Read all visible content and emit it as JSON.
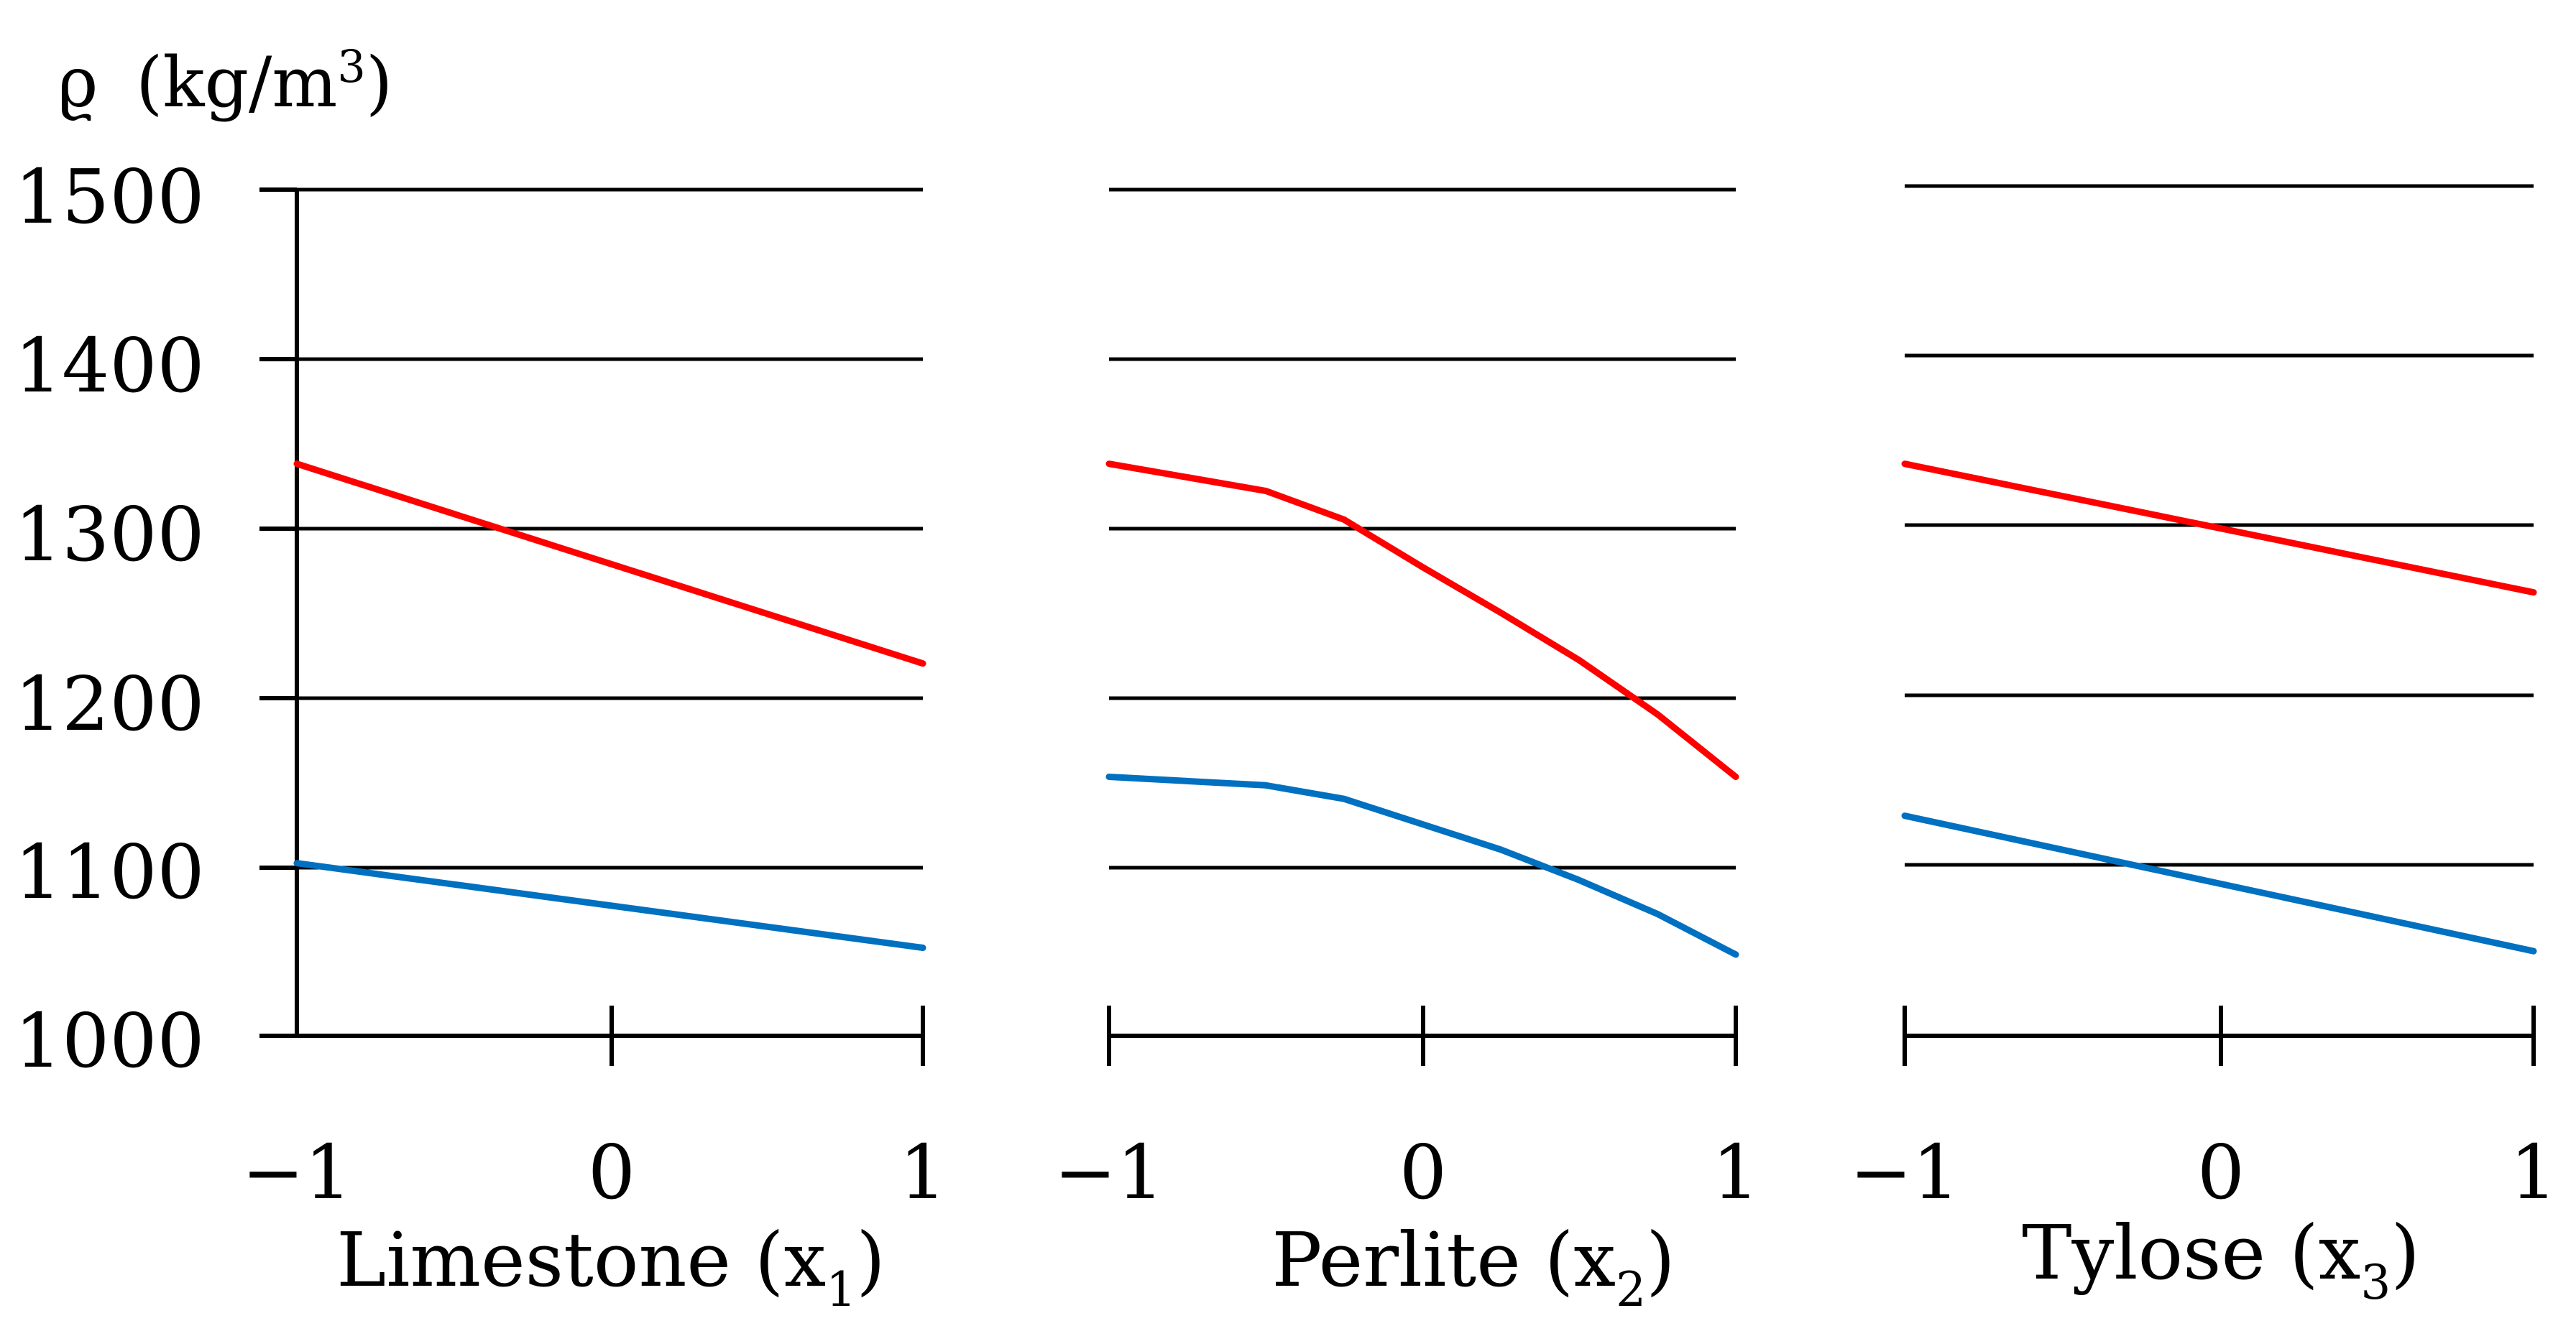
{
  "chart_data": {
    "type": "line",
    "ylabel": {
      "symbol": "ϱ",
      "unit_base": "(kg/m",
      "unit_sup": "3",
      "unit_close": ")"
    },
    "ylim": [
      1000,
      1500
    ],
    "yticks": [
      "1000",
      "1100",
      "1200",
      "1300",
      "1400",
      "1500"
    ],
    "xticks": [
      "−1",
      "0",
      "1"
    ],
    "colors": {
      "red": "#ff0000",
      "blue": "#0070c0"
    },
    "panels": [
      {
        "name": "limestone",
        "xlabel": {
          "text": "Limestone (x",
          "sub": "1",
          "close": ")"
        },
        "series": [
          {
            "name": "red",
            "color": "#ff0000",
            "x": [
              -1,
              1
            ],
            "y": [
              1338,
              1220
            ]
          },
          {
            "name": "blue",
            "color": "#0070c0",
            "x": [
              -1,
              1
            ],
            "y": [
              1102,
              1052
            ]
          }
        ]
      },
      {
        "name": "perlite",
        "xlabel": {
          "text": "Perlite (x",
          "sub": "2",
          "close": ")"
        },
        "series": [
          {
            "name": "red",
            "color": "#ff0000",
            "x": [
              -1,
              -0.5,
              -0.25,
              0,
              0.25,
              0.5,
              0.75,
              1
            ],
            "y": [
              1338,
              1322,
              1305,
              1277,
              1250,
              1222,
              1190,
              1153
            ]
          },
          {
            "name": "blue",
            "color": "#0070c0",
            "x": [
              -1,
              -0.5,
              -0.25,
              0,
              0.25,
              0.5,
              0.75,
              1
            ],
            "y": [
              1153,
              1148,
              1140,
              1125,
              1110,
              1092,
              1072,
              1048
            ]
          }
        ]
      },
      {
        "name": "tylose",
        "xlabel": {
          "text": "Tylose (x",
          "sub": "3",
          "close": ")"
        },
        "series": [
          {
            "name": "red",
            "color": "#ff0000",
            "x": [
              -1,
              0,
              1
            ],
            "y": [
              1338,
              1300,
              1262
            ]
          },
          {
            "name": "blue",
            "color": "#0070c0",
            "x": [
              -1,
              0,
              1
            ],
            "y": [
              1130,
              1090,
              1050
            ]
          }
        ]
      }
    ]
  }
}
